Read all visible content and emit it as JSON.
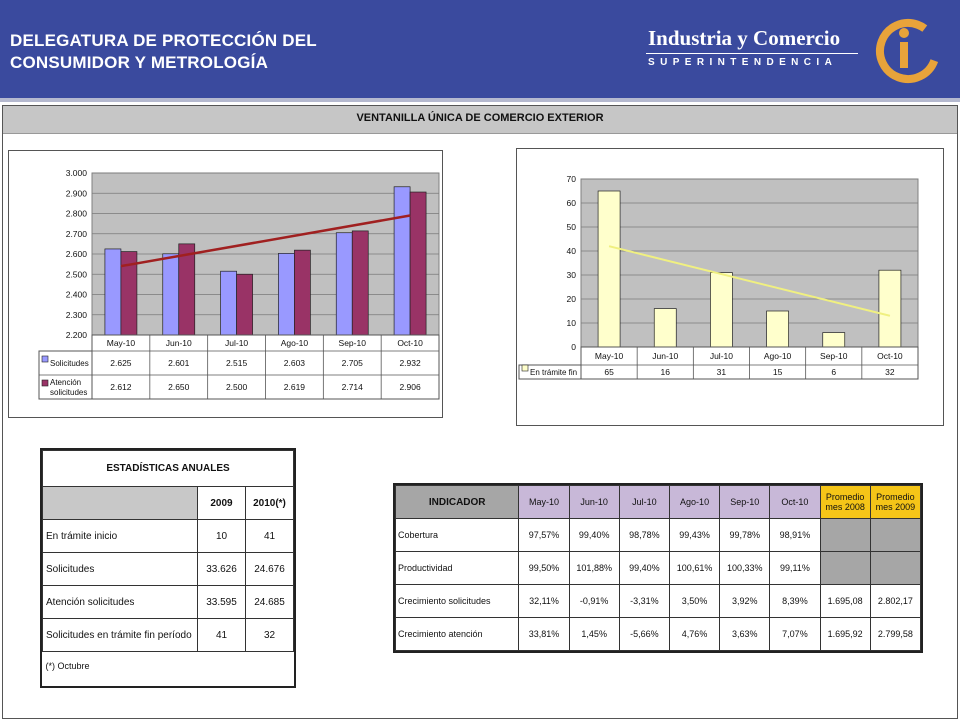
{
  "header": {
    "title_line1": "DELEGATURA DE PROTECCIÓN DEL",
    "title_line2": "CONSUMIDOR Y METROLOGÍA",
    "brand_line1": "Industria y Comercio",
    "brand_line2": "SUPERINTENDENCIA",
    "logo_text": "ic"
  },
  "section_title": "VENTANILLA ÚNICA DE COMERCIO EXTERIOR",
  "colors": {
    "header_bg": "#3a4a9e",
    "series_solicitudes": "#9999ff",
    "series_atencion": "#993366",
    "trend_left": "#a02020",
    "series_tramite": "#ffffcc",
    "trend_right": "#f0f080",
    "plot_bg": "#c0c0c0",
    "highlight_header": "#f5c518",
    "month_header": "#c8b8d8"
  },
  "chart_data": [
    {
      "type": "bar",
      "categories": [
        "May-10",
        "Jun-10",
        "Jul-10",
        "Ago-10",
        "Sep-10",
        "Oct-10"
      ],
      "series": [
        {
          "name": "Solicitudes",
          "values": [
            2625,
            2601,
            2515,
            2603,
            2705,
            2932
          ],
          "labels": [
            "2.625",
            "2.601",
            "2.515",
            "2.603",
            "2.705",
            "2.932"
          ]
        },
        {
          "name": "Atención solicitudes",
          "values": [
            2612,
            2650,
            2500,
            2619,
            2714,
            2906
          ],
          "labels": [
            "2.612",
            "2.650",
            "2.500",
            "2.619",
            "2.714",
            "2.906"
          ]
        }
      ],
      "legend_lines": [
        [
          "Solicitudes"
        ],
        [
          "Atención",
          "solicitudes"
        ]
      ],
      "trendline": {
        "from": 2540,
        "to": 2790
      },
      "ylim": [
        2200,
        3000
      ],
      "yticks": [
        2200,
        2300,
        2400,
        2500,
        2600,
        2700,
        2800,
        2900,
        3000
      ],
      "ytick_labels": [
        "2.200",
        "2.300",
        "2.400",
        "2.500",
        "2.600",
        "2.700",
        "2.800",
        "2.900",
        "3.000"
      ],
      "grid": true,
      "data_table": true
    },
    {
      "type": "bar",
      "categories": [
        "May-10",
        "Jun-10",
        "Jul-10",
        "Ago-10",
        "Sep-10",
        "Oct-10"
      ],
      "series": [
        {
          "name": "En trámite fin",
          "values": [
            65,
            16,
            31,
            15,
            6,
            32
          ],
          "labels": [
            "65",
            "16",
            "31",
            "15",
            "6",
            "32"
          ]
        }
      ],
      "legend_lines": [
        [
          "En trámite fin"
        ]
      ],
      "trendline": {
        "from": 42,
        "to": 13
      },
      "ylim": [
        0,
        70
      ],
      "yticks": [
        0,
        10,
        20,
        30,
        40,
        50,
        60,
        70
      ],
      "ytick_labels": [
        "0",
        "10",
        "20",
        "30",
        "40",
        "50",
        "60",
        "70"
      ],
      "grid": true,
      "data_table": true
    }
  ],
  "stats": {
    "title": "ESTADÍSTICAS ANUALES",
    "columns": [
      "2009",
      "2010(*)"
    ],
    "rows": [
      {
        "label": "En trámite inicio",
        "v2009": "10",
        "v2010": "41"
      },
      {
        "label": "Solicitudes",
        "v2009": "33.626",
        "v2010": "24.676"
      },
      {
        "label": "Atención solicitudes",
        "v2009": "33.595",
        "v2010": "24.685"
      },
      {
        "label": "Solicitudes en trámite fin período",
        "v2009": "41",
        "v2010": "32"
      }
    ],
    "footnote": "(*) Octubre"
  },
  "indicators": {
    "header": "INDICADOR",
    "months": [
      "May-10",
      "Jun-10",
      "Jul-10",
      "Ago-10",
      "Sep-10",
      "Oct-10"
    ],
    "avg_2008": "Promedio mes 2008",
    "avg_2009": "Promedio mes 2009",
    "rows": [
      {
        "label": "Cobertura",
        "values": [
          "97,57%",
          "99,40%",
          "98,78%",
          "99,43%",
          "99,78%",
          "98,91%"
        ],
        "a2008": "",
        "a2009": ""
      },
      {
        "label": "Productividad",
        "values": [
          "99,50%",
          "101,88%",
          "99,40%",
          "100,61%",
          "100,33%",
          "99,11%"
        ],
        "a2008": "",
        "a2009": ""
      },
      {
        "label": "Crecimiento solicitudes",
        "values": [
          "32,11%",
          "-0,91%",
          "-3,31%",
          "3,50%",
          "3,92%",
          "8,39%"
        ],
        "a2008": "1.695,08",
        "a2009": "2.802,17"
      },
      {
        "label": "Crecimiento atención",
        "values": [
          "33,81%",
          "1,45%",
          "-5,66%",
          "4,76%",
          "3,63%",
          "7,07%"
        ],
        "a2008": "1.695,92",
        "a2009": "2.799,58"
      }
    ]
  }
}
